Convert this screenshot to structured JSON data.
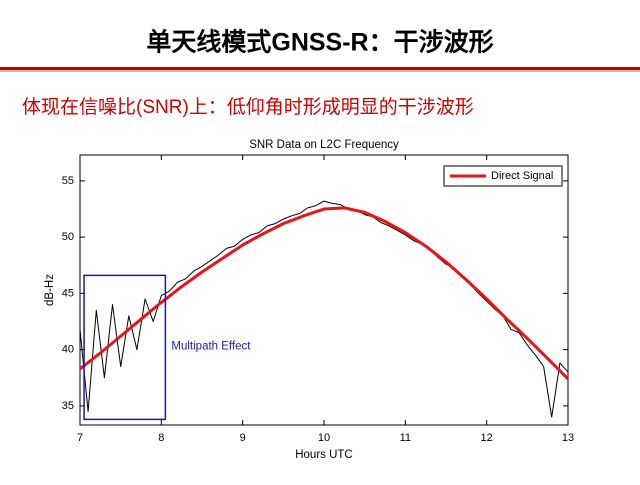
{
  "header": {
    "title": "单天线模式GNSS-R：干涉波形",
    "subtitle": "体现在信噪比(SNR)上：低仰角时形成明显的干涉波形"
  },
  "chart_data": {
    "type": "line",
    "title": "SNR Data on L2C Frequency",
    "x_label": "Hours UTC",
    "y_label": "dB-Hz",
    "xlim": [
      7,
      13
    ],
    "ylim": [
      33.3,
      57.3
    ],
    "xticks": [
      7,
      8,
      9,
      10,
      11,
      12,
      13
    ],
    "yticks": [
      35,
      40,
      45,
      50,
      55
    ],
    "grid": false,
    "legend": "upper right",
    "series": [
      {
        "color": "#000000",
        "width": 1,
        "x": [
          7.0,
          7.1,
          7.2,
          7.3,
          7.4,
          7.5,
          7.6,
          7.7,
          7.8,
          7.9,
          8.0,
          8.1,
          8.2,
          8.3,
          8.4,
          8.5,
          8.6,
          8.7,
          8.8,
          8.9,
          9.0,
          9.1,
          9.2,
          9.3,
          9.4,
          9.5,
          9.6,
          9.7,
          9.8,
          9.9,
          10.0,
          10.1,
          10.2,
          10.3,
          10.4,
          10.5,
          10.6,
          10.7,
          10.8,
          10.9,
          11.0,
          11.1,
          11.2,
          11.3,
          11.4,
          11.5,
          11.6,
          11.7,
          11.8,
          11.9,
          12.0,
          12.1,
          12.2,
          12.3,
          12.4,
          12.5,
          12.6,
          12.7,
          12.8,
          12.9,
          13.0
        ],
        "values": [
          41.8,
          34.5,
          43.5,
          37.5,
          44.0,
          38.5,
          43.0,
          40.0,
          44.5,
          42.5,
          44.8,
          45.2,
          46.0,
          46.3,
          47.0,
          47.4,
          47.9,
          48.4,
          49.0,
          49.2,
          49.8,
          50.2,
          50.4,
          51.0,
          51.2,
          51.6,
          51.9,
          52.1,
          52.6,
          52.8,
          53.2,
          53.0,
          52.9,
          52.5,
          52.4,
          52.0,
          51.8,
          51.3,
          51.0,
          50.6,
          50.2,
          49.7,
          49.4,
          48.9,
          48.2,
          47.6,
          47.2,
          46.4,
          45.8,
          45.0,
          44.3,
          43.6,
          43.0,
          41.8,
          41.5,
          40.4,
          39.5,
          38.5,
          34.0,
          38.8,
          38.0
        ]
      },
      {
        "name": "Direct Signal",
        "color": "#e8141a",
        "width": 3,
        "x": [
          7.0,
          7.25,
          7.5,
          7.75,
          8.0,
          8.25,
          8.5,
          8.75,
          9.0,
          9.25,
          9.5,
          9.75,
          10.0,
          10.25,
          10.5,
          10.75,
          11.0,
          11.25,
          11.5,
          11.75,
          12.0,
          12.25,
          12.5,
          12.75,
          13.0
        ],
        "values": [
          38.3,
          39.7,
          41.2,
          42.7,
          44.2,
          45.6,
          46.9,
          48.1,
          49.3,
          50.3,
          51.2,
          51.9,
          52.5,
          52.6,
          52.2,
          51.4,
          50.4,
          49.2,
          47.8,
          46.2,
          44.5,
          42.7,
          41.0,
          39.2,
          37.4
        ]
      }
    ],
    "annotations": [
      {
        "text": "Multipath Effect",
        "x": [
          7.05,
          8.05
        ],
        "y": [
          33.8,
          46.6
        ],
        "color": "#1a1aa8"
      }
    ]
  }
}
